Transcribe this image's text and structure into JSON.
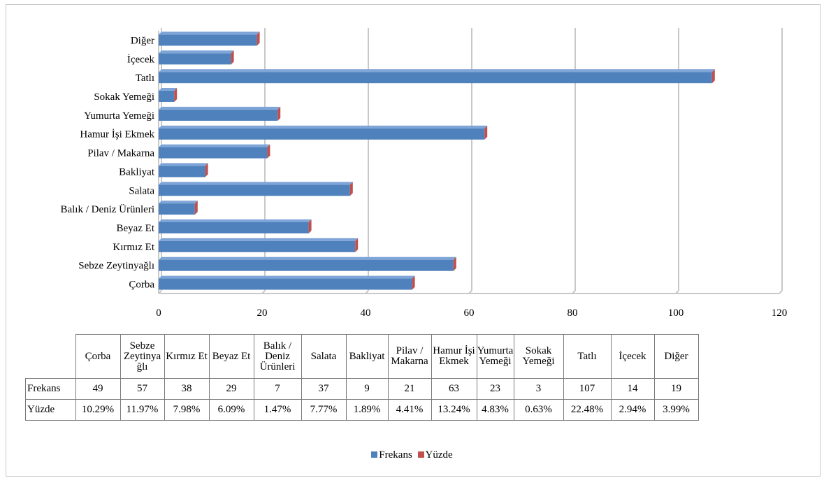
{
  "colors": {
    "frekans": "#4f81bd",
    "yuzde": "#c0504d",
    "grid": "#c8c8c8"
  },
  "chart_data": {
    "type": "bar",
    "orientation": "horizontal",
    "categories": [
      "Çorba",
      "Sebze Zeytinyağlı",
      "Kırmız Et",
      "Beyaz Et",
      "Balık / Deniz Ürünleri",
      "Salata",
      "Bakliyat",
      "Pilav / Makarna",
      "Hamur İşi Ekmek",
      "Yumurta Yemeği",
      "Sokak Yemeği",
      "Tatlı",
      "İçecek",
      "Diğer"
    ],
    "series": [
      {
        "name": "Frekans",
        "values": [
          49,
          57,
          38,
          29,
          7,
          37,
          9,
          21,
          63,
          23,
          3,
          107,
          14,
          19
        ]
      },
      {
        "name": "Yüzde",
        "values": [
          10.29,
          11.97,
          7.98,
          6.09,
          1.47,
          7.77,
          1.89,
          4.41,
          13.24,
          4.83,
          0.63,
          22.48,
          2.94,
          3.99
        ]
      }
    ],
    "xlim": [
      0,
      120
    ],
    "xticks": [
      "0",
      "20",
      "40",
      "60",
      "80",
      "100",
      "120"
    ],
    "grid": true,
    "legend": "bottom",
    "data_table": {
      "header_labels": [
        "Çorba",
        "Sebze Zeytinya ğlı",
        "Kırmız Et",
        "Beyaz Et",
        "Balık / Deniz Ürünleri",
        "Salata",
        "Bakliyat",
        "Pilav / Makarna",
        "Hamur İşi Ekmek",
        "Yumurta Yemeği",
        "Sokak Yemeği",
        "Tatlı",
        "İçecek",
        "Diğer"
      ],
      "rows": [
        {
          "label": "Frekans",
          "cells": [
            "49",
            "57",
            "38",
            "29",
            "7",
            "37",
            "9",
            "21",
            "63",
            "23",
            "3",
            "107",
            "14",
            "19"
          ]
        },
        {
          "label": "Yüzde",
          "cells": [
            "10.29%",
            "11.97%",
            "7.98%",
            "6.09%",
            "1.47%",
            "7.77%",
            "1.89%",
            "4.41%",
            "13.24%",
            "4.83%",
            "0.63%",
            "22.48%",
            "2.94%",
            "3.99%"
          ]
        }
      ]
    }
  }
}
